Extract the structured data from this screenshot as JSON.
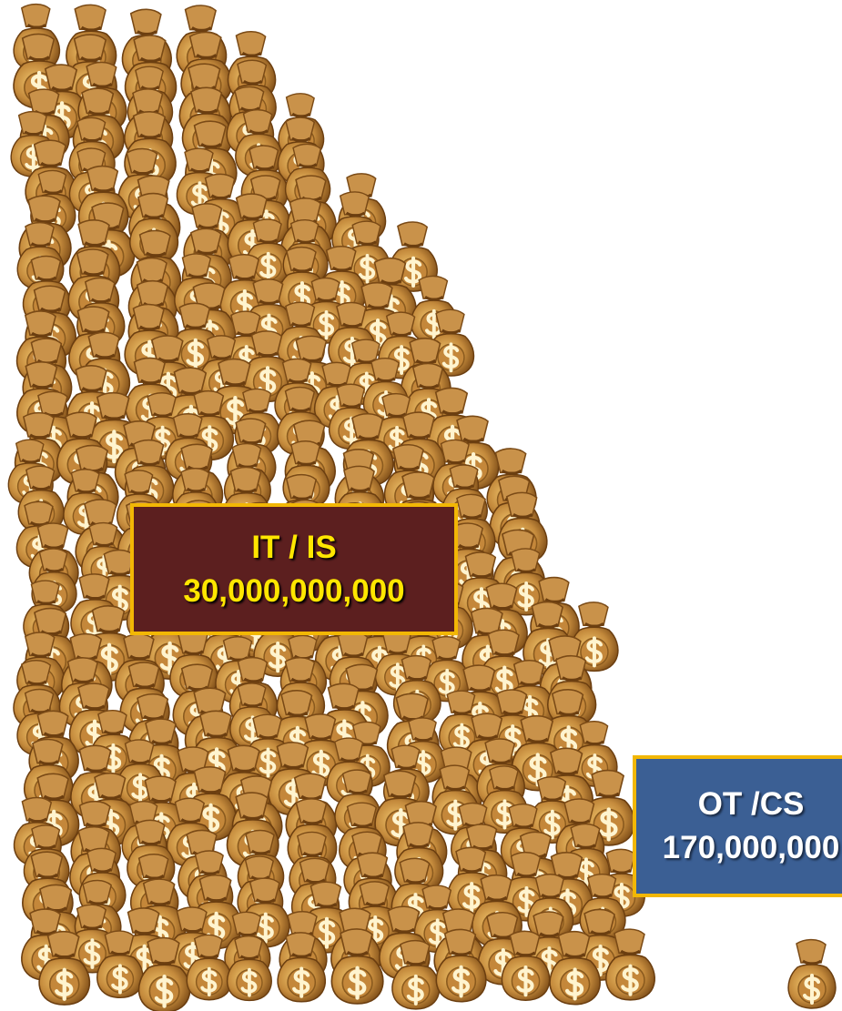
{
  "labels": [
    {
      "title": "IT / IS",
      "amount": "30,000,000,000"
    },
    {
      "title": "OT /CS",
      "amount": "170,000,000"
    }
  ]
}
